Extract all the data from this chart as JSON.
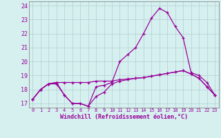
{
  "x": [
    0,
    1,
    2,
    3,
    4,
    5,
    6,
    7,
    8,
    9,
    10,
    11,
    12,
    13,
    14,
    15,
    16,
    17,
    18,
    19,
    20,
    21,
    22,
    23
  ],
  "temp_curve": [
    17.3,
    18.0,
    18.4,
    18.4,
    17.6,
    17.0,
    17.0,
    16.8,
    18.2,
    18.3,
    18.5,
    20.0,
    20.5,
    21.0,
    22.0,
    23.1,
    23.8,
    23.5,
    22.5,
    21.7,
    19.2,
    19.0,
    18.5,
    17.6
  ],
  "windchill_curve1": [
    17.3,
    18.0,
    18.4,
    18.5,
    18.5,
    18.5,
    18.5,
    18.5,
    18.6,
    18.6,
    18.6,
    18.7,
    18.75,
    18.8,
    18.85,
    18.95,
    19.05,
    19.15,
    19.25,
    19.35,
    19.1,
    18.8,
    18.2,
    17.6
  ],
  "windchill_curve2": [
    17.3,
    18.0,
    18.4,
    18.5,
    17.6,
    17.0,
    17.0,
    16.8,
    17.5,
    17.8,
    18.4,
    18.6,
    18.7,
    18.8,
    18.85,
    18.95,
    19.05,
    19.15,
    19.25,
    19.35,
    19.1,
    18.8,
    18.2,
    17.6
  ],
  "line_color": "#990099",
  "bg_color": "#d6f0f0",
  "grid_color": "#b0cece",
  "ylabel_ticks": [
    17,
    18,
    19,
    20,
    21,
    22,
    23,
    24
  ],
  "xlabel_ticks": [
    0,
    1,
    2,
    3,
    4,
    5,
    6,
    7,
    8,
    9,
    10,
    11,
    12,
    13,
    14,
    15,
    16,
    17,
    18,
    19,
    20,
    21,
    22,
    23
  ],
  "xlabel": "Windchill (Refroidissement éolien,°C)",
  "ylim": [
    16.7,
    24.3
  ],
  "xlim": [
    -0.5,
    23.5
  ]
}
